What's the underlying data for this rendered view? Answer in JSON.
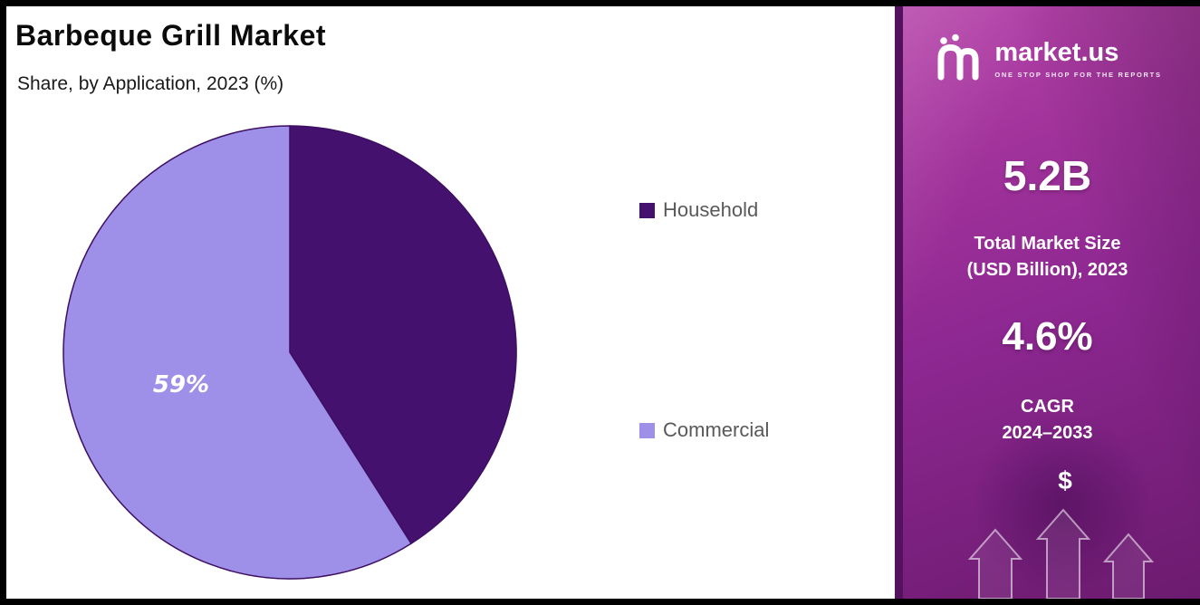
{
  "page": {
    "title": "Barbeque Grill Market",
    "subtitle": "Share, by Application, 2023 (%)"
  },
  "chart_data": {
    "type": "pie",
    "title": "Barbeque Grill Market",
    "subtitle": "Share, by Application, 2023 (%)",
    "unit": "%",
    "year": "2023",
    "start_angle_deg": 0,
    "direction": "clockwise",
    "legend_position": "right",
    "outline_color": "#3D0F63",
    "slices": [
      {
        "label": "Household",
        "value": 41,
        "color": "#45116F",
        "data_label": ""
      },
      {
        "label": "Commercial",
        "value": 59,
        "color": "#9E8FE8",
        "data_label": "59%"
      }
    ]
  },
  "sidebar": {
    "brand": {
      "name": "market.us",
      "tagline": "ONE STOP SHOP FOR THE REPORTS"
    },
    "market_size": {
      "value": "5.2B",
      "label_line1": "Total Market Size",
      "label_line2": "(USD Billion), 2023"
    },
    "cagr": {
      "value": "4.6%",
      "label_line1": "CAGR",
      "label_line2": "2024–2033"
    },
    "currency_symbol": "$"
  }
}
